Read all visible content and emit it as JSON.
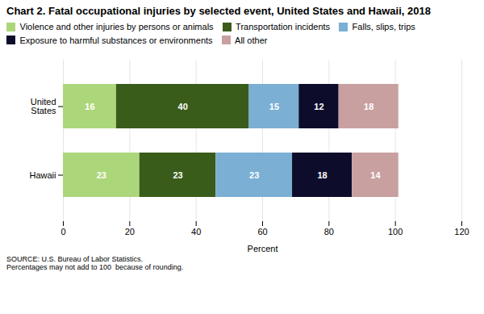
{
  "chart_data": {
    "type": "bar",
    "orientation": "horizontal",
    "stacked": true,
    "title": "Chart 2.  Fatal occupational injuries by selected event, United States and Hawaii, 2018",
    "categories": [
      "United\nStates",
      "Hawaii"
    ],
    "series": [
      {
        "name": "Violence and other injuries by persons or animals",
        "color": "#acd67a",
        "values": [
          16,
          23
        ]
      },
      {
        "name": "Transportation incidents",
        "color": "#3a5c1a",
        "values": [
          40,
          23
        ]
      },
      {
        "name": "Falls, slips, trips",
        "color": "#7bafd4",
        "values": [
          15,
          23
        ]
      },
      {
        "name": "Exposure to harmful substances or environments",
        "color": "#0d0d2b",
        "values": [
          12,
          18
        ]
      },
      {
        "name": "All other",
        "color": "#c8a0a0",
        "values": [
          18,
          14
        ]
      }
    ],
    "xlabel": "Percent",
    "xlim": [
      0,
      120
    ],
    "xticks": [
      0,
      20,
      40,
      60,
      80,
      100,
      120
    ],
    "grid": true,
    "data_labels": true,
    "legend": "top",
    "annotations": [
      "SOURCE: U.S. Bureau of Labor Statistics.\nPercentages may not add to 100  because of rounding."
    ]
  }
}
